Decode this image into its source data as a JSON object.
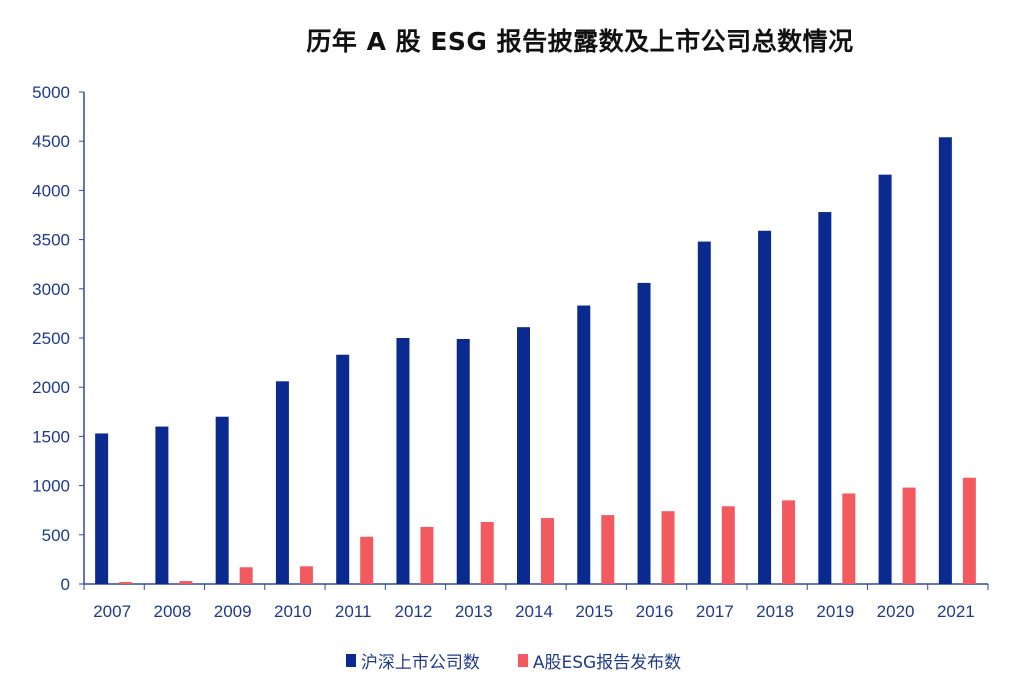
{
  "chart_data": {
    "type": "bar",
    "title": "历年 A 股 ESG 报告披露数及上市公司总数情况",
    "categories": [
      "2007",
      "2008",
      "2009",
      "2010",
      "2011",
      "2012",
      "2013",
      "2014",
      "2015",
      "2016",
      "2017",
      "2018",
      "2019",
      "2020",
      "2021"
    ],
    "series": [
      {
        "name": "沪深上市公司数",
        "color": "#0b2a8f",
        "values": [
          1530,
          1600,
          1700,
          2060,
          2330,
          2500,
          2490,
          2610,
          2830,
          3060,
          3480,
          3590,
          3780,
          4160,
          4540
        ]
      },
      {
        "name": "A股ESG报告发布数",
        "color": "#f25a5f",
        "values": [
          20,
          30,
          170,
          180,
          480,
          580,
          630,
          670,
          700,
          740,
          790,
          850,
          920,
          980,
          1080
        ]
      }
    ],
    "ylim": [
      0,
      5000
    ],
    "yticks": [
      0,
      500,
      1000,
      1500,
      2000,
      2500,
      3000,
      3500,
      4000,
      4500,
      5000
    ],
    "xlabel": "",
    "ylabel": "",
    "legend_position": "bottom",
    "grid": false
  }
}
